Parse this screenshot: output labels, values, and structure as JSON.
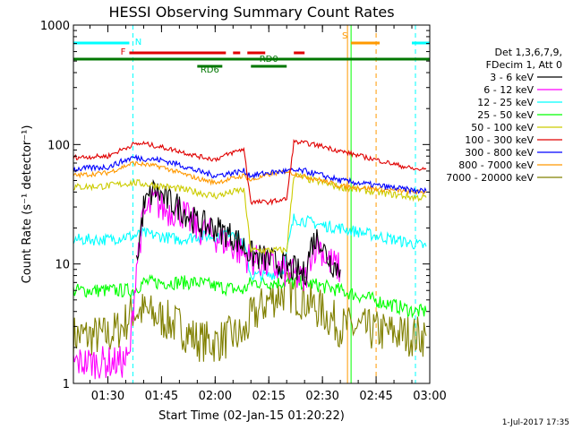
{
  "chart_data": {
    "type": "line",
    "title": "HESSI Observing Summary Count Rates",
    "xlabel": "Start Time (02-Jan-15 01:20:22)",
    "ylabel": "Count Rate (s⁻¹ detector⁻¹)",
    "x_unit": "minutes",
    "xlim": [
      "01:20:22",
      "03:00"
    ],
    "ylim": [
      1,
      1000
    ],
    "yscale": "log",
    "x_ticks": [
      "01:30",
      "01:45",
      "02:00",
      "02:15",
      "02:30",
      "02:45",
      "03:00"
    ],
    "y_ticks": [
      "1",
      "10",
      "100",
      "1000"
    ],
    "legend_header": [
      "Det 1,3,6,7,9,",
      "FDecim 1, Att 0"
    ],
    "series": [
      {
        "name": "3 - 6 keV",
        "color": "#000000",
        "points": [
          [
            "01:38",
            10
          ],
          [
            "01:40",
            30
          ],
          [
            "01:43",
            42
          ],
          [
            "01:46",
            35
          ],
          [
            "01:50",
            30
          ],
          [
            "01:55",
            22
          ],
          [
            "02:00",
            20
          ],
          [
            "02:05",
            17
          ],
          [
            "02:08",
            14
          ],
          [
            "02:10",
            12
          ],
          [
            "02:14",
            11
          ],
          [
            "02:18",
            10
          ],
          [
            "02:22",
            9
          ],
          [
            "02:25",
            8
          ],
          [
            "02:27",
            15
          ],
          [
            "02:29",
            17
          ],
          [
            "02:31",
            12
          ],
          [
            "02:33",
            10
          ],
          [
            "02:35",
            9
          ]
        ]
      },
      {
        "name": "6 - 12 keV",
        "color": "#ff00ff",
        "points": [
          [
            "01:20:22",
            1.5
          ],
          [
            "01:34",
            1.5
          ],
          [
            "01:36",
            1.6
          ],
          [
            "01:38",
            10
          ],
          [
            "01:40",
            25
          ],
          [
            "01:43",
            34
          ],
          [
            "01:46",
            28
          ],
          [
            "01:50",
            28
          ],
          [
            "01:55",
            20
          ],
          [
            "02:00",
            17
          ],
          [
            "02:05",
            14
          ],
          [
            "02:08",
            12
          ],
          [
            "02:10",
            11
          ],
          [
            "02:14",
            10
          ],
          [
            "02:18",
            9
          ],
          [
            "02:22",
            8
          ],
          [
            "02:25",
            7
          ],
          [
            "02:27",
            13
          ],
          [
            "02:29",
            15
          ],
          [
            "02:31",
            11
          ],
          [
            "02:33",
            10
          ],
          [
            "02:35",
            9
          ]
        ]
      },
      {
        "name": "12 - 25 keV",
        "color": "#00ffff",
        "points": [
          [
            "01:20:22",
            16
          ],
          [
            "01:30",
            16
          ],
          [
            "01:35",
            17
          ],
          [
            "01:37",
            17
          ],
          [
            "01:40",
            18
          ],
          [
            "01:45",
            17
          ],
          [
            "01:50",
            16
          ],
          [
            "01:55",
            17
          ],
          [
            "02:00",
            17
          ],
          [
            "02:05",
            19
          ],
          [
            "02:08",
            15
          ],
          [
            "02:10",
            8
          ],
          [
            "02:15",
            8
          ],
          [
            "02:19",
            9
          ],
          [
            "02:22",
            24
          ],
          [
            "02:25",
            23
          ],
          [
            "02:30",
            21
          ],
          [
            "02:35",
            20
          ],
          [
            "02:59",
            14
          ]
        ]
      },
      {
        "name": "25 - 50 keV",
        "color": "#00ff00",
        "points": [
          [
            "01:20:22",
            6
          ],
          [
            "01:30",
            6
          ],
          [
            "01:37",
            6
          ],
          [
            "01:40",
            7
          ],
          [
            "01:45",
            7
          ],
          [
            "01:50",
            7
          ],
          [
            "01:55",
            7
          ],
          [
            "02:00",
            6.5
          ],
          [
            "02:08",
            6
          ],
          [
            "02:10",
            7
          ],
          [
            "02:15",
            7
          ],
          [
            "02:20",
            7
          ],
          [
            "02:25",
            7
          ],
          [
            "02:30",
            6.5
          ],
          [
            "02:35",
            6
          ],
          [
            "02:56",
            4
          ],
          [
            "02:59",
            4
          ]
        ]
      },
      {
        "name": "50 - 100 keV",
        "color": "#cccc00",
        "points": [
          [
            "01:20:22",
            44
          ],
          [
            "01:30",
            45
          ],
          [
            "01:37",
            48
          ],
          [
            "01:45",
            45
          ],
          [
            "01:55",
            40
          ],
          [
            "02:00",
            37
          ],
          [
            "02:05",
            40
          ],
          [
            "02:08",
            42
          ],
          [
            "02:10",
            13
          ],
          [
            "02:15",
            13
          ],
          [
            "02:20",
            13
          ],
          [
            "02:22",
            56
          ],
          [
            "02:25",
            52
          ],
          [
            "02:30",
            48
          ],
          [
            "02:35",
            44
          ],
          [
            "02:56",
            36
          ],
          [
            "02:59",
            36
          ]
        ]
      },
      {
        "name": "100 - 300 keV",
        "color": "#e00000",
        "points": [
          [
            "01:20:22",
            78
          ],
          [
            "01:30",
            80
          ],
          [
            "01:37",
            100
          ],
          [
            "01:40",
            102
          ],
          [
            "01:45",
            95
          ],
          [
            "01:50",
            88
          ],
          [
            "01:55",
            80
          ],
          [
            "02:00",
            75
          ],
          [
            "02:05",
            86
          ],
          [
            "02:08",
            92
          ],
          [
            "02:10",
            33
          ],
          [
            "02:15",
            33
          ],
          [
            "02:20",
            35
          ],
          [
            "02:22",
            105
          ],
          [
            "02:25",
            103
          ],
          [
            "02:30",
            97
          ],
          [
            "02:35",
            88
          ],
          [
            "02:56",
            62
          ],
          [
            "02:59",
            62
          ]
        ]
      },
      {
        "name": "300 - 800 keV",
        "color": "#0000ff",
        "points": [
          [
            "01:20:22",
            62
          ],
          [
            "01:30",
            65
          ],
          [
            "01:37",
            78
          ],
          [
            "01:45",
            74
          ],
          [
            "01:50",
            68
          ],
          [
            "01:55",
            60
          ],
          [
            "02:00",
            55
          ],
          [
            "02:05",
            58
          ],
          [
            "02:08",
            60
          ],
          [
            "02:10",
            55
          ],
          [
            "02:15",
            58
          ],
          [
            "02:20",
            60
          ],
          [
            "02:22",
            60
          ],
          [
            "02:25",
            60
          ],
          [
            "02:30",
            55
          ],
          [
            "02:35",
            50
          ],
          [
            "02:56",
            41
          ],
          [
            "02:59",
            41
          ]
        ]
      },
      {
        "name": "800 - 7000 keV",
        "color": "#ff9900",
        "points": [
          [
            "01:20:22",
            55
          ],
          [
            "01:30",
            58
          ],
          [
            "01:37",
            70
          ],
          [
            "01:45",
            65
          ],
          [
            "01:50",
            58
          ],
          [
            "01:55",
            52
          ],
          [
            "02:00",
            48
          ],
          [
            "02:05",
            52
          ],
          [
            "02:08",
            55
          ],
          [
            "02:10",
            50
          ],
          [
            "02:15",
            56
          ],
          [
            "02:20",
            60
          ],
          [
            "02:22",
            57
          ],
          [
            "02:25",
            54
          ],
          [
            "02:30",
            50
          ],
          [
            "02:35",
            45
          ],
          [
            "02:56",
            40
          ],
          [
            "02:59",
            40
          ]
        ]
      },
      {
        "name": "7000 - 20000 keV",
        "color": "#808000",
        "points": [
          [
            "01:20:22",
            2.5
          ],
          [
            "01:30",
            2.5
          ],
          [
            "01:34",
            3
          ],
          [
            "01:37",
            4
          ],
          [
            "01:40",
            4
          ],
          [
            "01:45",
            3.5
          ],
          [
            "01:50",
            3
          ],
          [
            "01:55",
            2.3
          ],
          [
            "02:00",
            2.2
          ],
          [
            "02:05",
            2.5
          ],
          [
            "02:08",
            2.5
          ],
          [
            "02:10",
            3.5
          ],
          [
            "02:15",
            5
          ],
          [
            "02:20",
            6
          ],
          [
            "02:25",
            5
          ],
          [
            "02:30",
            4
          ],
          [
            "02:35",
            3
          ],
          [
            "02:56",
            2.5
          ],
          [
            "02:59",
            2.5
          ]
        ]
      }
    ],
    "flags": [
      {
        "label": "N",
        "color": "#00ffff",
        "row": 0,
        "spans": [
          [
            "01:20:22",
            "01:36"
          ],
          [
            "02:55",
            "03:00"
          ]
        ]
      },
      {
        "label": "S",
        "color": "#ff9900",
        "row": 0,
        "spans": [
          [
            "02:38",
            "02:46"
          ]
        ]
      },
      {
        "label": "F",
        "color": "#e00000",
        "row": 1,
        "spans": [
          [
            "01:36",
            "02:03"
          ],
          [
            "02:05",
            "02:07"
          ],
          [
            "02:09",
            "02:14"
          ],
          [
            "02:22",
            "02:25"
          ]
        ]
      },
      {
        "label": "",
        "color": "#007700",
        "row": 2,
        "spans": [
          [
            "01:20:22",
            "03:00"
          ]
        ]
      },
      {
        "label": "RD6",
        "color": "#007700",
        "row": 3,
        "spans": [
          [
            "01:55",
            "02:02"
          ]
        ]
      },
      {
        "label": "RD0",
        "color": "#007700",
        "row": 3,
        "spans": [
          [
            "02:10",
            "02:20"
          ]
        ]
      }
    ],
    "vlines": [
      {
        "x": "01:37",
        "color": "#00ffff",
        "dashed": true
      },
      {
        "x": "02:37",
        "color": "#ff9900",
        "dashed": false
      },
      {
        "x": "02:38",
        "color": "#00ff00",
        "dashed": false
      },
      {
        "x": "02:45",
        "color": "#ff9900",
        "dashed": true
      },
      {
        "x": "02:56",
        "color": "#00ffff",
        "dashed": true
      }
    ],
    "grid": false,
    "legend_position": "right"
  },
  "footer": {
    "date": "1-Jul-2017 17:35"
  }
}
